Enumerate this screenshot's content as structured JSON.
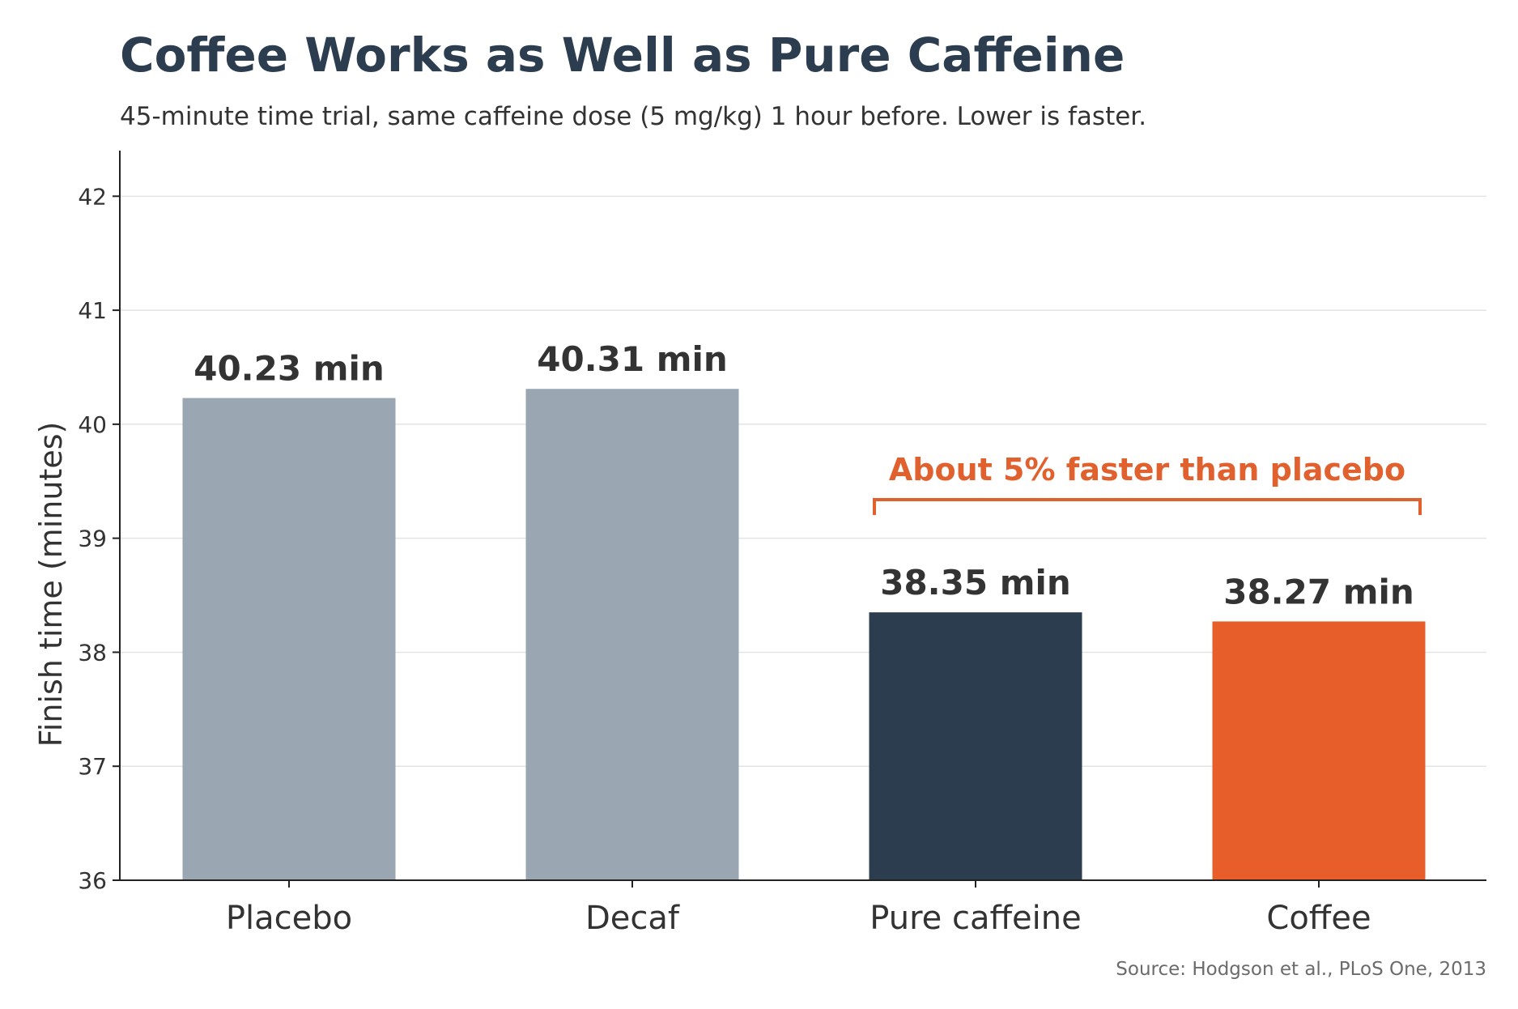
{
  "chart_data": {
    "type": "bar",
    "title": "Coffee Works as Well as Pure Caffeine",
    "subtitle": "45-minute time trial, same caffeine dose (5 mg/kg) 1 hour before. Lower is faster.",
    "xlabel": "",
    "ylabel": "Finish time (minutes)",
    "categories": [
      "Placebo",
      "Decaf",
      "Pure caffeine",
      "Coffee"
    ],
    "values": [
      40.23,
      40.31,
      38.35,
      38.27
    ],
    "value_labels": [
      "40.23 min",
      "40.31 min",
      "38.35 min",
      "38.27 min"
    ],
    "bar_colors": [
      "#9aa6b1",
      "#9aa6b1",
      "#2d3d50",
      "#e85e2b"
    ],
    "ylim": [
      36,
      42.4
    ],
    "yticks": [
      36,
      37,
      38,
      39,
      40,
      41,
      42
    ],
    "grid": true,
    "annotation": {
      "text": "About 5% faster than placebo",
      "color": "#e0602e",
      "spans": [
        "Pure caffeine",
        "Coffee"
      ]
    },
    "source": "Source: Hodgson et al., PLoS One, 2013"
  },
  "colors": {
    "title": "#2d3d50",
    "text": "#333333",
    "axis": "#222222",
    "grid": "#e3e3e3",
    "source": "#6b6b6b"
  }
}
